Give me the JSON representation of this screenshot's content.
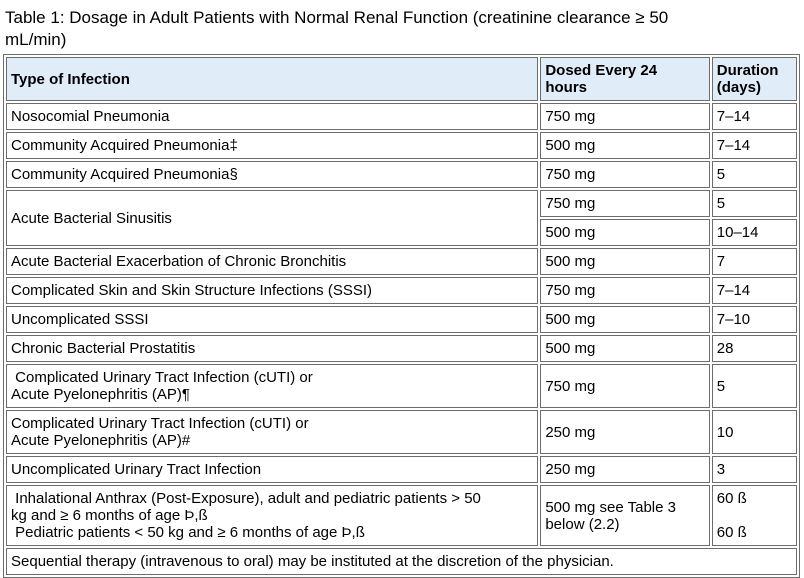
{
  "title": "Table 1: Dosage in Adult Patients with Normal Renal Function (creatinine clearance ≥ 50\nmL/min)",
  "colors": {
    "header_bg": "#e1ecf9",
    "border": "#6d6d6d",
    "text": "#000000",
    "background": "#ffffff"
  },
  "table": {
    "headers": {
      "infection": "Type of Infection",
      "dose": "Dosed Every 24\nhours",
      "duration": "Duration\n(days)"
    },
    "rows": [
      {
        "infection": "Nosocomial Pneumonia",
        "dose": "750 mg",
        "duration": "7–14"
      },
      {
        "infection": "Community Acquired Pneumonia‡",
        "dose": "500 mg",
        "duration": "7–14"
      },
      {
        "infection": "Community Acquired Pneumonia§",
        "dose": "750 mg",
        "duration": "5"
      },
      {
        "infection": "Acute Bacterial Sinusitis",
        "dose": "750 mg",
        "duration": "5"
      },
      {
        "dose": "500 mg",
        "duration": "10–14"
      },
      {
        "infection": "Acute Bacterial Exacerbation of Chronic Bronchitis",
        "dose": "500 mg",
        "duration": "7"
      },
      {
        "infection": "Complicated Skin and Skin Structure Infections (SSSI)",
        "dose": "750 mg",
        "duration": "7–14"
      },
      {
        "infection": "Uncomplicated SSSI",
        "dose": "500 mg",
        "duration": "7–10"
      },
      {
        "infection": "Chronic Bacterial Prostatitis",
        "dose": "500 mg",
        "duration": "28"
      },
      {
        "infection": " Complicated Urinary Tract Infection (cUTI) or\nAcute Pyelonephritis (AP)¶",
        "dose": "750 mg",
        "duration": "5"
      },
      {
        "infection": "Complicated Urinary Tract Infection (cUTI) or\nAcute Pyelonephritis (AP)#",
        "dose": "250 mg",
        "duration": "10"
      },
      {
        "infection": "Uncomplicated Urinary Tract Infection",
        "dose": "250 mg",
        "duration": "3"
      },
      {
        "infection": " Inhalational Anthrax (Post-Exposure), adult and pediatric patients > 50\nkg and ≥ 6 months of age Þ,ß\n Pediatric patients < 50 kg and ≥ 6 months of age Þ,ß",
        "dose": "500 mg see Table 3\nbelow (2.2)",
        "duration": "60 ß\n\n60 ß"
      }
    ],
    "footnote": "Sequential therapy (intravenous to oral) may be instituted at the discretion of the physician."
  }
}
